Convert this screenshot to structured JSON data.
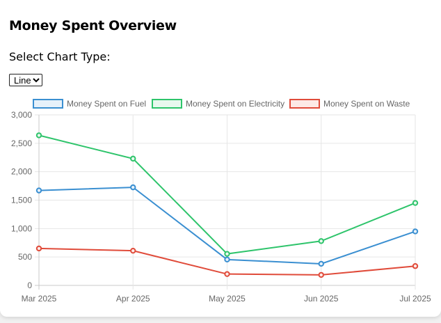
{
  "header": {
    "title": "Money Spent Overview"
  },
  "controls": {
    "select_label": "Select Chart Type:",
    "chart_type_selected": "Line"
  },
  "chart_data": {
    "type": "line",
    "categories": [
      "Mar 2025",
      "Apr 2025",
      "May 2025",
      "Jun 2025",
      "Jul 2025"
    ],
    "series": [
      {
        "name": "Money Spent on Fuel",
        "values": [
          1670,
          1725,
          455,
          380,
          950
        ],
        "color": "#3a8fd1",
        "fill": "#e6f1fa"
      },
      {
        "name": "Money Spent on Electricity",
        "values": [
          2640,
          2230,
          555,
          780,
          1450
        ],
        "color": "#2ec46b",
        "fill": "#e8f8ee"
      },
      {
        "name": "Money Spent on Waste",
        "values": [
          650,
          610,
          200,
          185,
          340
        ],
        "color": "#e04b3a",
        "fill": "#fde9e6"
      }
    ],
    "ylim": [
      0,
      3000
    ],
    "yticks": [
      "0",
      "500",
      "1,000",
      "1,500",
      "2,000",
      "2,500",
      "3,000"
    ],
    "grid": true,
    "legend_position": "top"
  }
}
